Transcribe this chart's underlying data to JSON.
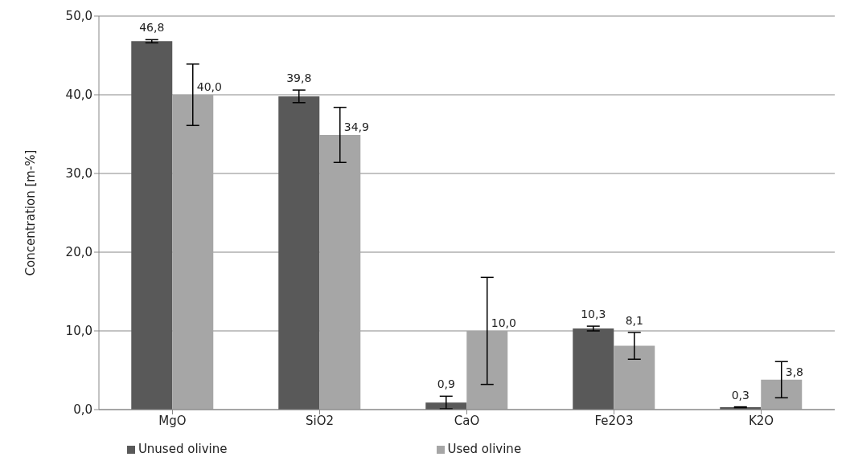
{
  "chart_data": {
    "type": "bar",
    "ylabel": "Concentration [m-%]",
    "categories": [
      "MgO",
      "SiO2",
      "CaO",
      "Fe2O3",
      "K2O"
    ],
    "series": [
      {
        "name": "Unused olivine",
        "color": "#595959",
        "values": [
          46.8,
          39.8,
          0.9,
          10.3,
          0.3
        ],
        "errors": [
          0.2,
          0.8,
          0.8,
          0.3,
          0.05
        ],
        "value_labels": [
          "46,8",
          "39,8",
          "0,9",
          "10,3",
          "0,3"
        ]
      },
      {
        "name": "Used olivine",
        "color": "#a6a6a6",
        "values": [
          40.0,
          34.9,
          10.0,
          8.1,
          3.8
        ],
        "errors": [
          3.9,
          3.5,
          6.8,
          1.7,
          2.3
        ],
        "value_labels": [
          "40,0",
          "34,9",
          "10,0",
          "8,1",
          "3,8"
        ]
      }
    ],
    "ylim": [
      0,
      50
    ],
    "yticks": [
      {
        "value": 0,
        "label": "0,0"
      },
      {
        "value": 10,
        "label": "10,0"
      },
      {
        "value": 20,
        "label": "20,0"
      },
      {
        "value": 30,
        "label": "30,0"
      },
      {
        "value": 40,
        "label": "40,0"
      },
      {
        "value": 50,
        "label": "50,0"
      }
    ],
    "grid": "y",
    "legend": "bottom"
  }
}
